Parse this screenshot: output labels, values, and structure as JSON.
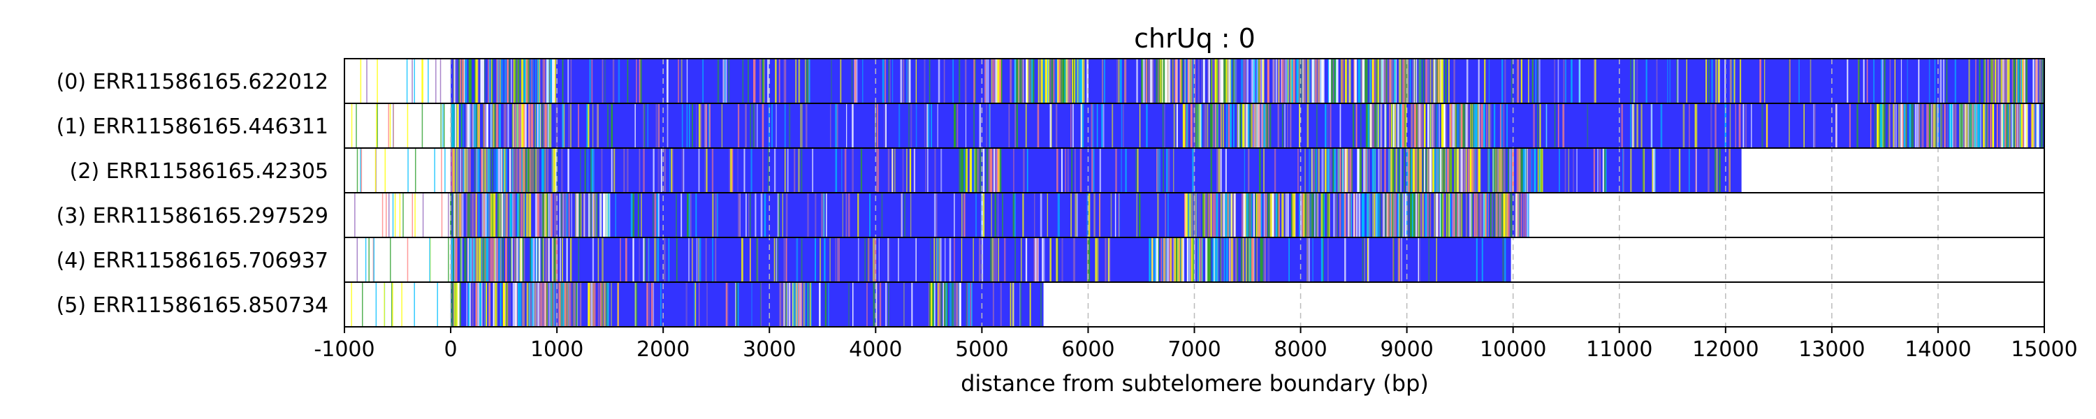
{
  "chart_data": {
    "type": "read-track-plot",
    "title": "chrUq : 0",
    "xlabel": "distance from subtelomere boundary (bp)",
    "ylabel": "",
    "xlim": [
      -1000,
      15000
    ],
    "x_ticks": [
      -1000,
      0,
      1000,
      2000,
      3000,
      4000,
      5000,
      6000,
      7000,
      8000,
      9000,
      10000,
      11000,
      12000,
      13000,
      14000,
      15000
    ],
    "grid": "vertical dashed at x ticks",
    "fill_color": "#3333ff",
    "minor_colors": [
      "#2ca02c",
      "#00bfff",
      "#ffff00",
      "#ff8080",
      "#ffffff",
      "#9467bd"
    ],
    "tracks": [
      {
        "label": "(0) ERR11586165.622012",
        "read_start": 0,
        "read_end": 15000,
        "dense_regions": [
          [
            0,
            1000
          ],
          [
            5000,
            6000
          ],
          [
            6500,
            9400
          ],
          [
            14500,
            15000
          ]
        ]
      },
      {
        "label": "(1) ERR11586165.446311",
        "read_start": 0,
        "read_end": 15000,
        "dense_regions": [
          [
            0,
            1000
          ],
          [
            6900,
            7700
          ],
          [
            8600,
            9800
          ],
          [
            13400,
            15000
          ]
        ]
      },
      {
        "label": "(2) ERR11586165.42305",
        "read_start": 0,
        "read_end": 12150,
        "dense_regions": [
          [
            0,
            1000
          ],
          [
            4800,
            5200
          ],
          [
            8100,
            10300
          ]
        ]
      },
      {
        "label": "(3) ERR11586165.297529",
        "read_start": 0,
        "read_end": 10150,
        "dense_regions": [
          [
            0,
            1500
          ],
          [
            6900,
            10150
          ]
        ]
      },
      {
        "label": "(4) ERR11586165.706937",
        "read_start": 0,
        "read_end": 9980,
        "dense_regions": [
          [
            0,
            1000
          ],
          [
            6600,
            7700
          ]
        ]
      },
      {
        "label": "(5) ERR11586165.850734",
        "read_start": 0,
        "read_end": 5580,
        "dense_regions": [
          [
            0,
            1500
          ],
          [
            3100,
            3400
          ],
          [
            4500,
            4800
          ]
        ]
      }
    ]
  }
}
